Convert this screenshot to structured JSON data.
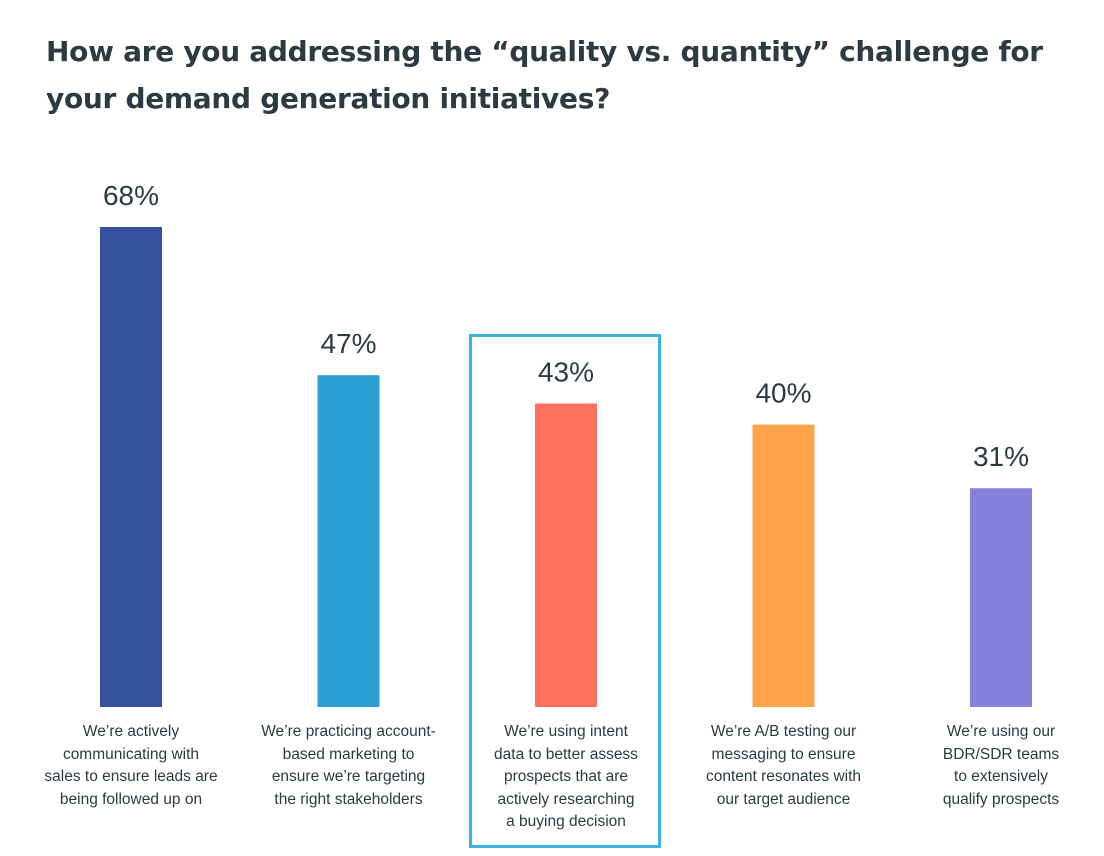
{
  "title": "How are you addressing the “quality vs. quantity” challenge for your demand generation initiatives?",
  "chart_data": {
    "type": "bar",
    "title": "How are you addressing the “quality vs. quantity” challenge for your demand generation initiatives?",
    "xlabel": "",
    "ylabel": "",
    "ylim": [
      0,
      68
    ],
    "grid": false,
    "categories": [
      "We’re actively communicating with sales to ensure leads are being followed up on",
      "We’re practicing account-based marketing to ensure we’re targeting the right stakeholders",
      "We’re using intent data to better assess prospects that are actively researching a buying decision",
      "We’re A/B testing our messaging to ensure content resonates with our target audience",
      "We’re using our BDR/SDR teams to extensively qualify prospects"
    ],
    "category_lines": [
      [
        "We’re actively",
        "communicating with",
        "sales to ensure leads are",
        "being followed up on"
      ],
      [
        "We’re practicing account-",
        "based marketing to",
        "ensure we’re targeting",
        "the right stakeholders"
      ],
      [
        "We’re using intent",
        "data to better assess",
        "prospects that are",
        "actively researching",
        "a buying decision"
      ],
      [
        "We’re A/B testing our",
        "messaging to ensure",
        "content resonates with",
        "our target audience"
      ],
      [
        "We’re using our",
        "BDR/SDR teams",
        "to extensively",
        "qualify prospects"
      ]
    ],
    "values": [
      68,
      47,
      43,
      40,
      31
    ],
    "value_labels": [
      "68%",
      "47%",
      "43%",
      "40%",
      "31%"
    ],
    "colors": [
      "#34529e",
      "#2b9fd4",
      "#fe715d",
      "#fda44a",
      "#8482da"
    ],
    "highlighted_index": 2,
    "highlight_color": "#3db2e3"
  }
}
